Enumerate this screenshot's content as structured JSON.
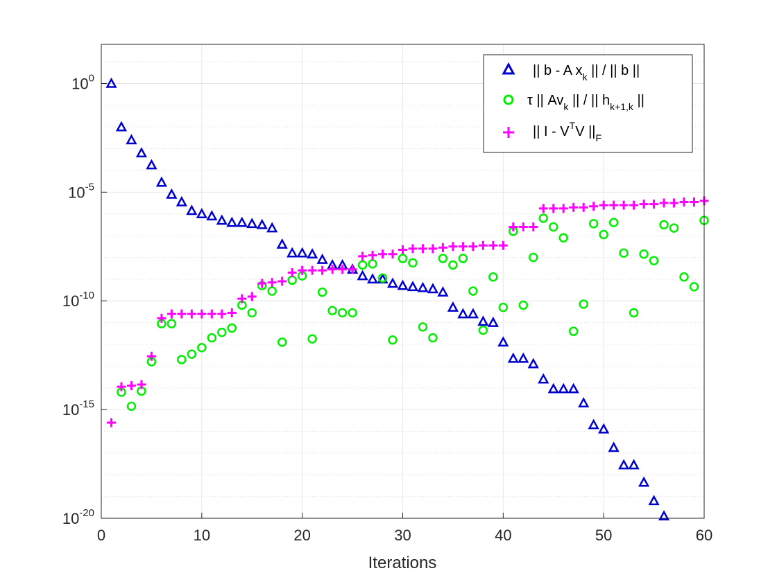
{
  "chart_data": {
    "type": "scatter",
    "title": "",
    "xlabel": "Iterations",
    "ylabel": "",
    "xscale": "linear",
    "yscale": "log",
    "xlim": [
      0,
      60
    ],
    "ylim_log10": [
      -20,
      1.8
    ],
    "xticks": [
      0,
      10,
      20,
      30,
      40,
      50,
      60
    ],
    "xtick_labels": [
      "0",
      "10",
      "20",
      "30",
      "40",
      "50",
      "60"
    ],
    "yticks_log10": [
      0,
      -5,
      -10,
      -15,
      -20
    ],
    "ytick_base": "10",
    "ytick_exponents": [
      "0",
      "-5",
      "-10",
      "-15",
      "-20"
    ],
    "grid": true,
    "minor_grid": true,
    "legend_position": "top-right",
    "colors": {
      "series1": "#0000cc",
      "series2": "#00ee00",
      "series3": "#ff00ff",
      "grid": "#e6e6e6",
      "axis": "#262626"
    },
    "legend": [
      {
        "marker": "triangle",
        "parts": [
          "|| b - A x",
          "k",
          " || / || b ||"
        ],
        "sub_index": 1
      },
      {
        "marker": "circle",
        "parts": [
          "τ || Av",
          "k",
          " || / || h",
          "k+1,k",
          " ||"
        ],
        "sub_index": [
          1,
          3
        ]
      },
      {
        "marker": "plus",
        "parts": [
          "|| I - V",
          "T",
          "V ||",
          "F"
        ],
        "sup_index": 1,
        "sub_index": 3
      }
    ],
    "series": [
      {
        "name": "|| b - A x_k || / || b ||",
        "marker": "triangle",
        "x": [
          1,
          2,
          3,
          4,
          5,
          6,
          7,
          8,
          9,
          10,
          11,
          12,
          13,
          14,
          15,
          16,
          17,
          18,
          19,
          20,
          21,
          22,
          23,
          24,
          25,
          26,
          27,
          28,
          29,
          30,
          31,
          32,
          33,
          34,
          35,
          36,
          37,
          38,
          39,
          40,
          41,
          42,
          43,
          44,
          45,
          46,
          47,
          48,
          49,
          50,
          51,
          52,
          53,
          54,
          55,
          56
        ],
        "log10_y": [
          0,
          -2,
          -2.6,
          -3.2,
          -3.75,
          -4.55,
          -5.1,
          -5.45,
          -5.85,
          -6,
          -6.1,
          -6.3,
          -6.4,
          -6.4,
          -6.45,
          -6.5,
          -6.65,
          -7.4,
          -7.8,
          -7.8,
          -7.85,
          -8.1,
          -8.35,
          -8.35,
          -8.55,
          -8.85,
          -9,
          -9,
          -9.2,
          -9.3,
          -9.35,
          -9.4,
          -9.45,
          -9.6,
          -10.3,
          -10.6,
          -10.6,
          -10.95,
          -11,
          -11.9,
          -12.65,
          -12.65,
          -12.9,
          -13.6,
          -14.05,
          -14.05,
          -14.05,
          -14.7,
          -15.7,
          -15.9,
          -16.75,
          -17.55,
          -17.55,
          -18.35,
          -19.2,
          -19.9
        ]
      },
      {
        "name": "τ || Av_k || / || h_{k+1,k} ||",
        "marker": "circle",
        "x": [
          2,
          3,
          4,
          5,
          6,
          7,
          8,
          9,
          10,
          11,
          12,
          13,
          14,
          15,
          16,
          17,
          18,
          19,
          20,
          21,
          22,
          23,
          24,
          25,
          26,
          27,
          28,
          29,
          30,
          31,
          32,
          33,
          34,
          35,
          36,
          37,
          38,
          39,
          40,
          41,
          42,
          43,
          44,
          45,
          46,
          47,
          48,
          49,
          50,
          51,
          52,
          53,
          54,
          55,
          56,
          57,
          58,
          59,
          60
        ],
        "log10_y": [
          -14.2,
          -14.85,
          -14.15,
          -12.8,
          -11.05,
          -11.05,
          -12.7,
          -12.45,
          -12.15,
          -11.7,
          -11.45,
          -11.25,
          -10.2,
          -10.55,
          -9.3,
          -9.55,
          -11.9,
          -9.05,
          -8.85,
          -11.75,
          -9.6,
          -10.45,
          -10.55,
          -10.55,
          -8.35,
          -8.3,
          -8.95,
          -11.8,
          -8.05,
          -8.25,
          -11.2,
          -11.7,
          -8.05,
          -8.35,
          -8.05,
          -9.55,
          -11.35,
          -8.9,
          -10.3,
          -6.8,
          -10.2,
          -8,
          -6.2,
          -6.6,
          -7.1,
          -11.4,
          -10.15,
          -6.45,
          -6.95,
          -6.4,
          -7.8,
          -10.55,
          -7.85,
          -8.15,
          -6.5,
          -6.65,
          -8.9,
          -9.35,
          -6.3
        ]
      },
      {
        "name": "|| I - V^T V ||_F",
        "marker": "plus",
        "x": [
          1,
          2,
          3,
          4,
          5,
          6,
          7,
          8,
          9,
          10,
          11,
          12,
          13,
          14,
          15,
          16,
          17,
          18,
          19,
          20,
          21,
          22,
          23,
          24,
          25,
          26,
          27,
          28,
          29,
          30,
          31,
          32,
          33,
          34,
          35,
          36,
          37,
          38,
          39,
          40,
          41,
          42,
          43,
          44,
          45,
          46,
          47,
          48,
          49,
          50,
          51,
          52,
          53,
          54,
          55,
          56,
          57,
          58,
          59,
          60
        ],
        "log10_y": [
          -15.6,
          -13.95,
          -13.9,
          -13.85,
          -12.55,
          -10.8,
          -10.6,
          -10.6,
          -10.6,
          -10.6,
          -10.6,
          -10.6,
          -10.55,
          -9.9,
          -9.8,
          -9.2,
          -9.15,
          -9.1,
          -8.7,
          -8.6,
          -8.6,
          -8.6,
          -8.55,
          -8.55,
          -8.55,
          -7.95,
          -7.9,
          -7.85,
          -7.85,
          -7.65,
          -7.6,
          -7.6,
          -7.6,
          -7.55,
          -7.5,
          -7.5,
          -7.5,
          -7.45,
          -7.45,
          -7.45,
          -6.6,
          -6.6,
          -6.6,
          -5.75,
          -5.75,
          -5.75,
          -5.7,
          -5.7,
          -5.65,
          -5.6,
          -5.6,
          -5.6,
          -5.6,
          -5.55,
          -5.55,
          -5.5,
          -5.5,
          -5.45,
          -5.45,
          -5.4
        ]
      }
    ]
  }
}
